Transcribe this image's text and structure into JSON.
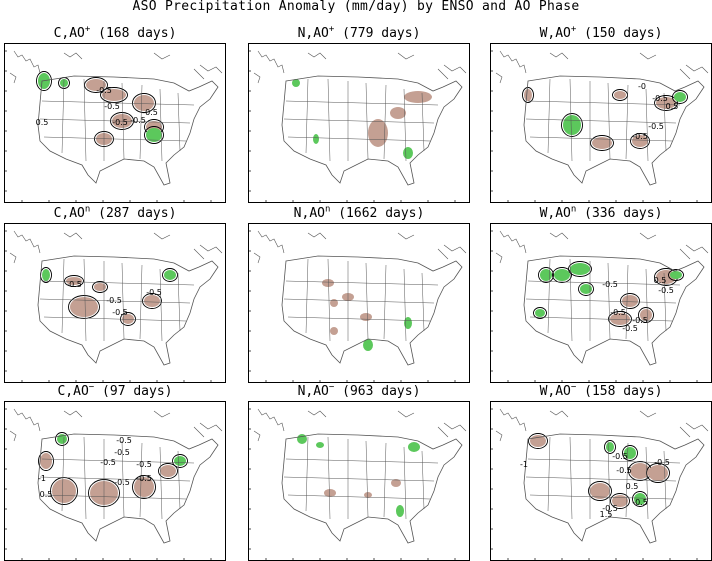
{
  "title": "ASO Precipitation Anomaly (mm/day) by ENSO and AO Phase",
  "colors": {
    "positive_anomaly": "#5cc85c",
    "negative_anomaly": "#c4a093",
    "map_lines": "#555555",
    "contour": "#000000"
  },
  "chart_data": [
    {
      "type": "heatmap",
      "enso": "C",
      "ao_sign": "+",
      "days": "(168 days)",
      "contour_labels": [
        "-0.5",
        "-0.5",
        "-0.5",
        "-0.5",
        "0.5",
        "-0.5"
      ]
    },
    {
      "type": "heatmap",
      "enso": "N",
      "ao_sign": "+",
      "days": "(779 days)",
      "contour_labels": []
    },
    {
      "type": "heatmap",
      "enso": "W",
      "ao_sign": "+",
      "days": "(150 days)",
      "contour_labels": [
        "-0",
        "-0.5",
        "0.5",
        "-0.5",
        "-0.5"
      ]
    },
    {
      "type": "heatmap",
      "enso": "C",
      "ao_sign": "n",
      "days": "(287 days)",
      "contour_labels": [
        "-0.5",
        "-0.5",
        "-0.5",
        "-0.5"
      ]
    },
    {
      "type": "heatmap",
      "enso": "N",
      "ao_sign": "n",
      "days": "(1662 days)",
      "contour_labels": []
    },
    {
      "type": "heatmap",
      "enso": "W",
      "ao_sign": "n",
      "days": "(336 days)",
      "contour_labels": [
        "-0.5",
        "0.5",
        "-0.5",
        "-0.5",
        "-0.5",
        "-0.5"
      ]
    },
    {
      "type": "heatmap",
      "enso": "C",
      "ao_sign": "−",
      "days": "(97 days)",
      "contour_labels": [
        "-0.5",
        "-0.5",
        "-0.5",
        "-0.5",
        "-0.5",
        "-1",
        "0.5",
        "-0.5"
      ]
    },
    {
      "type": "heatmap",
      "enso": "N",
      "ao_sign": "−",
      "days": "(963 days)",
      "contour_labels": []
    },
    {
      "type": "heatmap",
      "enso": "W",
      "ao_sign": "−",
      "days": "(158 days)",
      "contour_labels": [
        "-0.5",
        "-1",
        "-0.5",
        "0.5",
        "-0.5",
        "-0.5",
        "1.5",
        "-0.5"
      ]
    }
  ]
}
